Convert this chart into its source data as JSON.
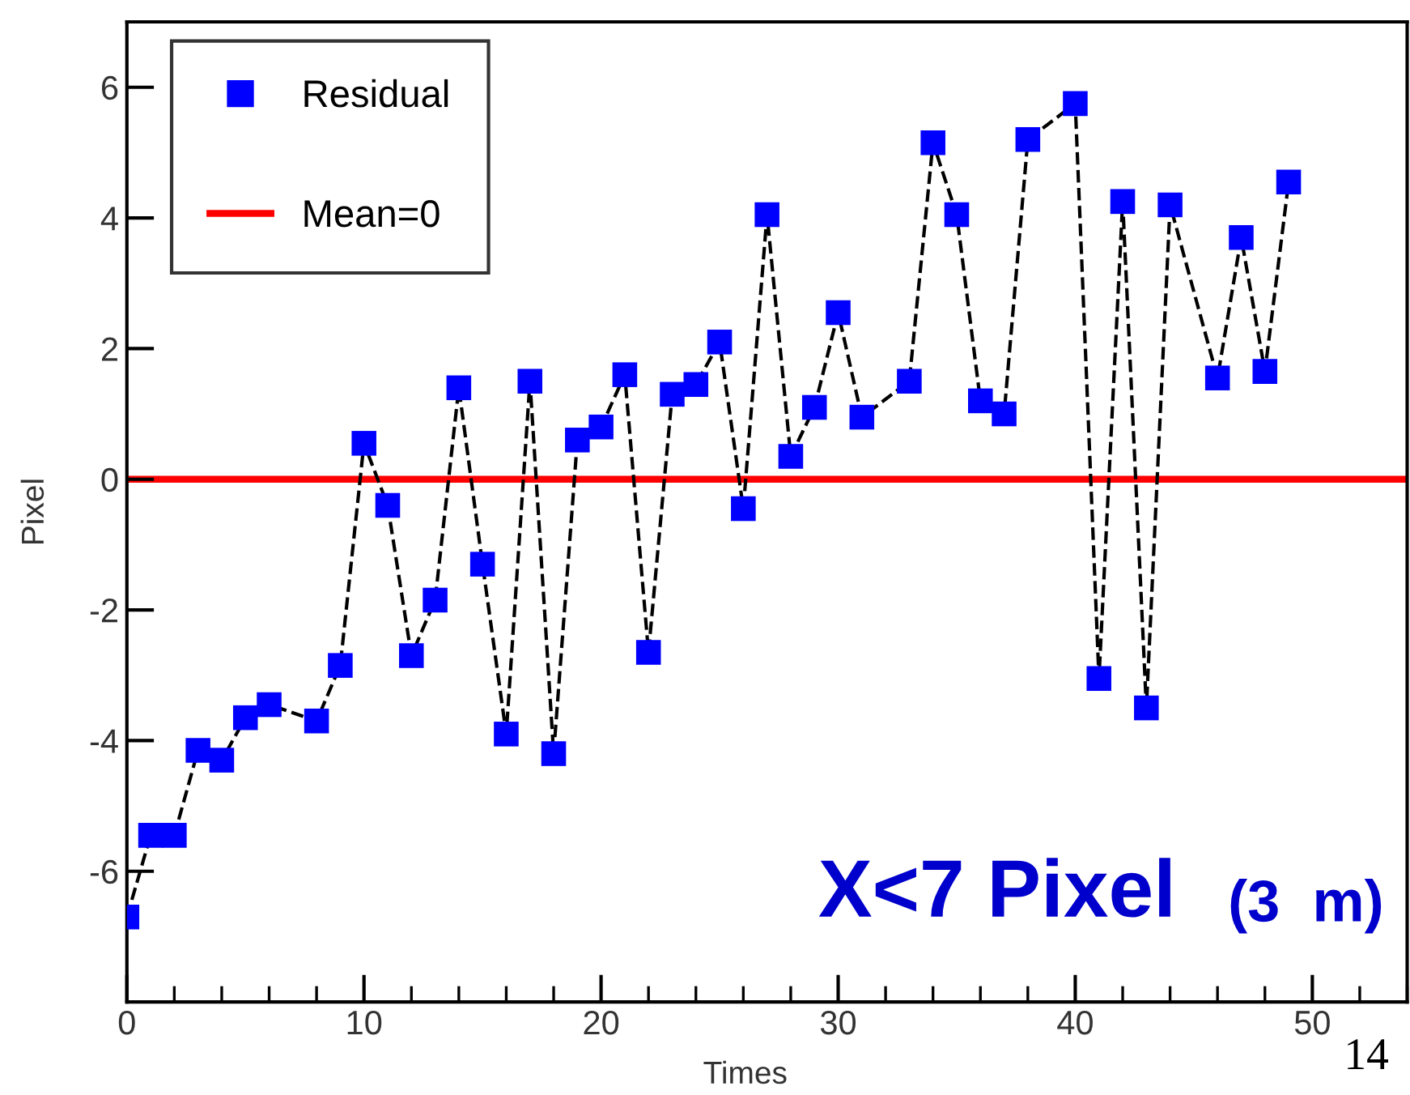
{
  "chart_data": {
    "type": "line",
    "xlabel": "Times",
    "ylabel": "Pixel",
    "x": [
      0,
      1,
      2,
      3,
      4,
      5,
      6,
      8,
      9,
      10,
      11,
      12,
      13,
      14,
      15,
      16,
      17,
      18,
      19,
      20,
      21,
      22,
      23,
      24,
      25,
      26,
      27,
      28,
      29,
      30,
      31,
      33,
      34,
      35,
      36,
      37,
      38,
      40,
      41,
      42,
      43,
      44,
      46,
      47,
      48,
      49
    ],
    "series": [
      {
        "color": "#000000",
        "marker": "none",
        "line_style": "dashed",
        "values": [
          -6.7,
          -5.45,
          -5.45,
          -4.15,
          -4.3,
          -3.65,
          -3.45,
          -3.7,
          -2.85,
          0.55,
          -0.4,
          -2.7,
          -1.85,
          1.4,
          -1.3,
          -3.9,
          1.5,
          -4.2,
          0.6,
          0.8,
          1.6,
          -2.65,
          1.3,
          1.45,
          2.1,
          -0.45,
          4.05,
          0.35,
          1.1,
          2.55,
          0.95,
          1.5,
          5.15,
          4.05,
          1.2,
          1.0,
          5.2,
          5.75,
          -3.05,
          4.25,
          -3.5,
          4.2,
          1.55,
          3.7,
          1.65,
          4.55
        ]
      },
      {
        "type": "scatter",
        "name": "Residual",
        "color": "#0000ff",
        "marker": "square",
        "values": [
          -6.7,
          -5.45,
          -5.45,
          -4.15,
          -4.3,
          -3.65,
          -3.45,
          -3.7,
          -2.85,
          0.55,
          -0.4,
          -2.7,
          -1.85,
          1.4,
          -1.3,
          -3.9,
          1.5,
          -4.2,
          0.6,
          0.8,
          1.6,
          -2.65,
          1.3,
          1.45,
          2.1,
          -0.45,
          4.05,
          0.35,
          1.1,
          2.55,
          0.95,
          1.5,
          5.15,
          4.05,
          1.2,
          1.0,
          5.2,
          5.75,
          -3.05,
          4.25,
          -3.5,
          4.2,
          1.55,
          3.7,
          1.65,
          4.55
        ]
      }
    ],
    "ref_lines": [
      {
        "axis": "y",
        "value": 0,
        "label": "Mean=0",
        "color": "#ff0000",
        "line_style": "solid"
      }
    ],
    "xlim": [
      0,
      54
    ],
    "ylim": [
      -8,
      7
    ],
    "xticks": [
      0,
      10,
      20,
      30,
      40,
      50
    ],
    "yticks": [
      -6,
      -4,
      -2,
      0,
      2,
      4,
      6
    ],
    "grid": false,
    "legend": "top left",
    "annotations": [
      "X<7 Pixel",
      "(3  m)",
      "14"
    ]
  }
}
